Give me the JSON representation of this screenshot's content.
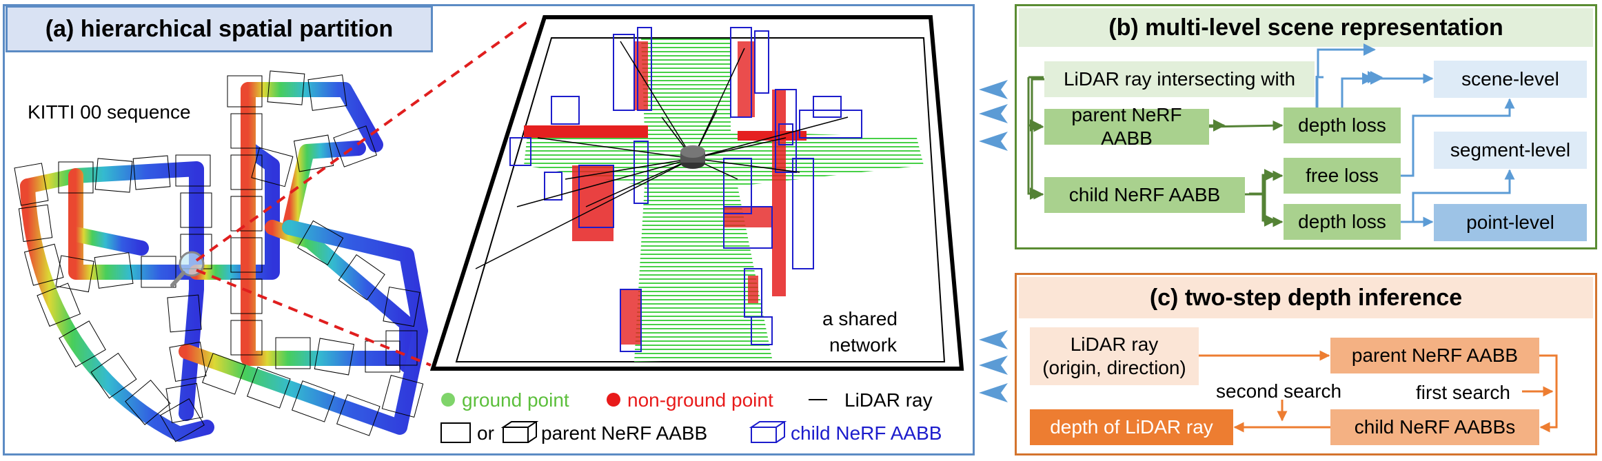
{
  "panel_a": {
    "title": "(a) hierarchical spatial partition",
    "sequence_label": "KITTI 00 sequence",
    "network_label": [
      "a shared",
      "network"
    ],
    "legend": {
      "ground": "ground point",
      "nonground": "non-ground point",
      "ray": "LiDAR ray",
      "or": "or",
      "parent": "parent NeRF AABB",
      "child": "child NeRF AABB"
    },
    "colors": {
      "ground": "#2db82d",
      "nonground": "#e81a1a",
      "child": "#1c1ccc",
      "ray": "#000000"
    }
  },
  "panel_b": {
    "title": "(b) multi-level scene representation",
    "nodes": {
      "ray": "LiDAR ray intersecting with",
      "parent": "parent NeRF AABB",
      "child": "child NeRF AABB",
      "depth1": "depth loss",
      "free": "free loss",
      "depth2": "depth loss",
      "scene": "scene-level",
      "segment": "segment-level",
      "point": "point-level"
    }
  },
  "panel_c": {
    "title": "(c) two-step depth inference",
    "nodes": {
      "ray1": "LiDAR ray",
      "ray2": "(origin, direction)",
      "parent": "parent NeRF AABB",
      "child": "child NeRF AABBs",
      "depth": "depth of LiDAR ray"
    },
    "first_search": "first search",
    "second_search": "second search"
  }
}
